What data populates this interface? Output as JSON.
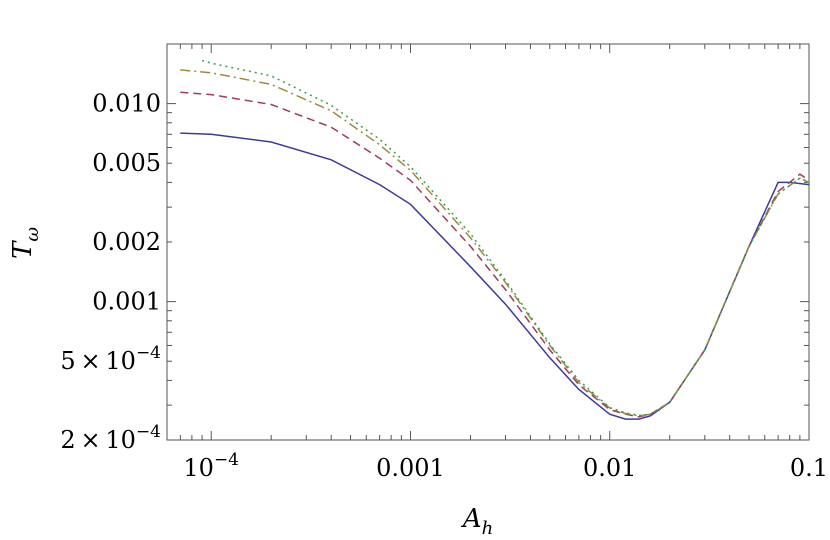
{
  "chart_data": {
    "type": "line",
    "xscale": "log",
    "yscale": "log",
    "xlabel": "A",
    "xlabel_sub": "h",
    "ylabel": "T",
    "ylabel_sub": "ω",
    "xlim": [
      6e-05,
      0.1
    ],
    "ylim": [
      0.0002,
      0.02
    ],
    "xticks": [
      {
        "value": 0.0001,
        "base": "10",
        "exp": "−4"
      },
      {
        "value": 0.001,
        "label": "0.001"
      },
      {
        "value": 0.01,
        "label": "0.01"
      },
      {
        "value": 0.1,
        "label": "0.1"
      }
    ],
    "yticks": [
      {
        "value": 0.0002,
        "coef": "2",
        "base": "10",
        "exp": "−4"
      },
      {
        "value": 0.0005,
        "coef": "5",
        "base": "10",
        "exp": "−4"
      },
      {
        "value": 0.001,
        "label": "0.001"
      },
      {
        "value": 0.002,
        "label": "0.002"
      },
      {
        "value": 0.005,
        "label": "0.005"
      },
      {
        "value": 0.01,
        "label": "0.010"
      }
    ],
    "series": [
      {
        "color": "#3b3b9e",
        "dash": "",
        "x": [
          7e-05,
          0.0001,
          0.0002,
          0.0004,
          0.0007,
          0.001,
          0.002,
          0.003,
          0.005,
          0.007,
          0.01,
          0.012,
          0.014,
          0.016,
          0.02,
          0.03,
          0.05,
          0.07,
          0.08,
          0.1
        ],
        "y": [
          0.0071,
          0.007,
          0.0064,
          0.0052,
          0.0039,
          0.0031,
          0.0015,
          0.00097,
          0.00052,
          0.00036,
          0.00027,
          0.000255,
          0.000255,
          0.000265,
          0.00031,
          0.00057,
          0.0019,
          0.004,
          0.004,
          0.0039
        ]
      },
      {
        "color": "#9e3b5e",
        "dash": "8,5",
        "x": [
          7e-05,
          0.0001,
          0.0002,
          0.0004,
          0.0007,
          0.001,
          0.002,
          0.003,
          0.005,
          0.007,
          0.01,
          0.012,
          0.014,
          0.016,
          0.02,
          0.03,
          0.05,
          0.07,
          0.09,
          0.1
        ],
        "y": [
          0.0114,
          0.0111,
          0.0099,
          0.0076,
          0.0053,
          0.0041,
          0.0019,
          0.00115,
          0.00057,
          0.00038,
          0.000285,
          0.00027,
          0.000262,
          0.00027,
          0.00031,
          0.00057,
          0.0019,
          0.0036,
          0.0044,
          0.0041
        ]
      },
      {
        "color": "#9e8a3b",
        "dash": "10,4,2,4",
        "x": [
          7e-05,
          0.0001,
          0.0002,
          0.0004,
          0.0007,
          0.001,
          0.002,
          0.003,
          0.005,
          0.007,
          0.01,
          0.012,
          0.014,
          0.016,
          0.02,
          0.03,
          0.05,
          0.07,
          0.09,
          0.1
        ],
        "y": [
          0.0148,
          0.0143,
          0.0125,
          0.0092,
          0.0062,
          0.0046,
          0.0021,
          0.00125,
          0.0006,
          0.00039,
          0.00029,
          0.000272,
          0.000265,
          0.00027,
          0.00031,
          0.00057,
          0.0019,
          0.0035,
          0.0042,
          0.004
        ]
      },
      {
        "color": "#3b9e4e",
        "dash": "2,4",
        "x": [
          9e-05,
          0.0001,
          0.0002,
          0.0004,
          0.0007,
          0.001,
          0.002,
          0.003,
          0.005,
          0.007,
          0.01,
          0.012,
          0.014,
          0.016,
          0.02,
          0.03,
          0.05,
          0.07,
          0.09,
          0.1
        ],
        "y": [
          0.0165,
          0.016,
          0.0138,
          0.0098,
          0.0066,
          0.0048,
          0.0022,
          0.00128,
          0.00061,
          0.0004,
          0.000292,
          0.000274,
          0.000266,
          0.00027,
          0.00031,
          0.00057,
          0.0019,
          0.0035,
          0.0042,
          0.004
        ]
      }
    ]
  }
}
